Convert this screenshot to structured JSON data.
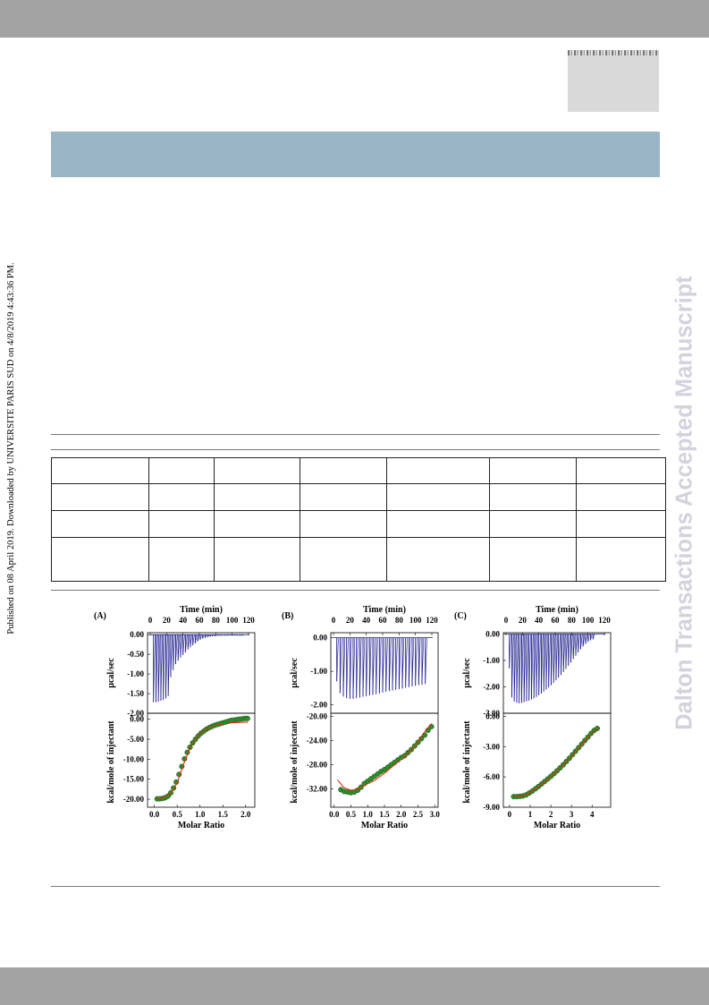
{
  "header": {
    "side_watermark": "Published on 08 April 2019. Downloaded by UNIVERSITE PARIS SUD on 4/8/2019 4:43:36 PM."
  },
  "journal": {
    "vertical_title": "Dalton Transactions Accepted Manuscript"
  },
  "table": {
    "rows": 4,
    "cols": 7,
    "cells": []
  },
  "figure": {
    "panels": [
      {
        "label": "(A)",
        "top_xlabel": "Time (min)",
        "top_xticks": [
          "0",
          "20",
          "40",
          "60",
          "80",
          "100",
          "120"
        ],
        "top_ylabel": "µcal/sec",
        "top_yticks": [
          "0.00",
          "-0.50",
          "-1.00",
          "-1.50",
          "-2.00"
        ],
        "bottom_ylabel": "kcal/mole of injectant",
        "bottom_yticks": [
          "0.00",
          "-5.00",
          "-10.00",
          "-15.00",
          "-20.00"
        ],
        "bottom_xlabel": "Molar Ratio",
        "bottom_xticks": [
          "0.0",
          "0.5",
          "1.0",
          "1.5",
          "2.0"
        ]
      },
      {
        "label": "(B)",
        "top_xlabel": "Time (min)",
        "top_xticks": [
          "0",
          "20",
          "40",
          "60",
          "80",
          "100",
          "120"
        ],
        "top_ylabel": "µcal/sec",
        "top_yticks": [
          "0.00",
          "-1.00",
          "-2.00"
        ],
        "bottom_ylabel": "kcal/mole of injectant",
        "bottom_yticks": [
          "-20.00",
          "-24.00",
          "-28.00",
          "-32.00"
        ],
        "bottom_xlabel": "Molar Ratio",
        "bottom_xticks": [
          "0.0",
          "0.5",
          "1.0",
          "1.5",
          "2.0",
          "2.5",
          "3.0"
        ]
      },
      {
        "label": "(C)",
        "top_xlabel": "Time (min)",
        "top_xticks": [
          "0",
          "20",
          "40",
          "60",
          "80",
          "100",
          "120"
        ],
        "top_ylabel": "µcal/sec",
        "top_yticks": [
          "0.00",
          "-1.00",
          "-2.00",
          "-3.00"
        ],
        "bottom_ylabel": "kcal/mole of injectant",
        "bottom_yticks": [
          "0.00",
          "-3.00",
          "-6.00",
          "-9.00"
        ],
        "bottom_xlabel": "Molar Ratio",
        "bottom_xticks": [
          "0",
          "1",
          "2",
          "3",
          "4"
        ]
      }
    ]
  },
  "colors": {
    "raw_trace": "#1f1f8c",
    "fit_line": "#e03010",
    "points": "#2e8b2e",
    "banner": "#9ab5c5",
    "watermark": "#d3d3de"
  },
  "chart_data": [
    {
      "type": "line",
      "panel": "A-top",
      "xlabel": "Time (min)",
      "ylabel": "µcal/sec",
      "xlim": [
        0,
        120
      ],
      "ylim": [
        -2.0,
        0.05
      ],
      "x": [
        4,
        7,
        10,
        13,
        16,
        19,
        22,
        25,
        28,
        31,
        34,
        37,
        40,
        43,
        46,
        49,
        52,
        55,
        58,
        61,
        64,
        67,
        70,
        73,
        76,
        79,
        82,
        85,
        88,
        91,
        94,
        97,
        100,
        103,
        106,
        109,
        112
      ],
      "values": [
        -1.72,
        -1.72,
        -1.7,
        -1.68,
        -1.66,
        -1.62,
        -1.56,
        -1.08,
        -0.9,
        -0.75,
        -0.66,
        -0.58,
        -0.52,
        -0.45,
        -0.38,
        -0.32,
        -0.27,
        -0.22,
        -0.17,
        -0.13,
        -0.1,
        -0.08,
        -0.06,
        -0.05,
        -0.04,
        -0.035,
        -0.03,
        -0.025,
        -0.02,
        -0.02,
        -0.02,
        -0.02,
        -0.02,
        -0.02,
        -0.02,
        -0.02,
        -0.02
      ]
    },
    {
      "type": "scatter",
      "panel": "A-bottom",
      "xlabel": "Molar Ratio",
      "ylabel": "kcal/mole of injectant",
      "xlim": [
        -0.15,
        2.2
      ],
      "ylim": [
        -22,
        1.5
      ],
      "x": [
        0.06,
        0.12,
        0.18,
        0.24,
        0.3,
        0.36,
        0.42,
        0.48,
        0.54,
        0.6,
        0.66,
        0.72,
        0.78,
        0.84,
        0.9,
        0.96,
        1.02,
        1.08,
        1.14,
        1.2,
        1.26,
        1.32,
        1.38,
        1.44,
        1.5,
        1.56,
        1.62,
        1.68,
        1.74,
        1.8,
        1.86,
        1.92,
        1.98,
        2.04
      ],
      "values": [
        -19.9,
        -19.9,
        -19.8,
        -19.6,
        -19.2,
        -18.4,
        -17.2,
        -15.7,
        -13.8,
        -11.8,
        -9.9,
        -8.3,
        -7.0,
        -5.9,
        -5.0,
        -4.2,
        -3.5,
        -3.0,
        -2.5,
        -2.1,
        -1.8,
        -1.5,
        -1.3,
        -1.1,
        -0.9,
        -0.7,
        -0.5,
        -0.3,
        -0.2,
        -0.1,
        0.0,
        0.1,
        0.2,
        0.2
      ],
      "fit_x": [
        0.05,
        0.2,
        0.35,
        0.5,
        0.65,
        0.8,
        0.95,
        1.1,
        1.25,
        1.4,
        1.55,
        1.7,
        1.85,
        2.05
      ],
      "fit": [
        -19.8,
        -19.6,
        -18.6,
        -15.9,
        -10.9,
        -6.6,
        -4.1,
        -2.7,
        -1.9,
        -1.4,
        -1.1,
        -0.9,
        -0.8,
        -0.7
      ]
    },
    {
      "type": "line",
      "panel": "B-top",
      "xlabel": "Time (min)",
      "ylabel": "µcal/sec",
      "xlim": [
        0,
        120
      ],
      "ylim": [
        -2.25,
        0.15
      ],
      "x": [
        4,
        8,
        12,
        16,
        20,
        24,
        28,
        32,
        36,
        40,
        44,
        48,
        52,
        56,
        60,
        64,
        68,
        72,
        76,
        80,
        84,
        88,
        92,
        96,
        100,
        104,
        108,
        112
      ],
      "values": [
        -1.3,
        -1.65,
        -1.75,
        -1.8,
        -1.82,
        -1.82,
        -1.8,
        -1.78,
        -1.76,
        -1.74,
        -1.72,
        -1.7,
        -1.68,
        -1.66,
        -1.63,
        -1.61,
        -1.59,
        -1.57,
        -1.55,
        -1.53,
        -1.51,
        -1.49,
        -1.47,
        -1.45,
        -1.43,
        -1.41,
        -1.4,
        -1.38
      ]
    },
    {
      "type": "scatter",
      "panel": "B-bottom",
      "xlabel": "Molar Ratio",
      "ylabel": "kcal/mole of injectant",
      "xlim": [
        -0.1,
        3.1
      ],
      "ylim": [
        -35,
        -19.5
      ],
      "x": [
        0.2,
        0.3,
        0.4,
        0.5,
        0.6,
        0.7,
        0.8,
        0.9,
        1.0,
        1.1,
        1.2,
        1.3,
        1.4,
        1.5,
        1.6,
        1.7,
        1.8,
        1.9,
        2.0,
        2.1,
        2.2,
        2.3,
        2.4,
        2.5,
        2.6,
        2.7,
        2.8,
        2.9
      ],
      "values": [
        -32.1,
        -32.4,
        -32.5,
        -32.6,
        -32.5,
        -32.2,
        -31.7,
        -31.1,
        -30.7,
        -30.3,
        -29.9,
        -29.5,
        -29.1,
        -28.8,
        -28.4,
        -28.0,
        -27.6,
        -27.2,
        -26.8,
        -26.5,
        -26.0,
        -25.5,
        -24.9,
        -24.3,
        -23.7,
        -23.1,
        -22.3,
        -21.7
      ],
      "fit_x": [
        0.1,
        0.3,
        0.5,
        0.7,
        0.9,
        1.2,
        1.5,
        1.8,
        2.1,
        2.4,
        2.7,
        2.9
      ],
      "fit": [
        -30.5,
        -31.8,
        -32.2,
        -32.0,
        -31.4,
        -30.6,
        -29.4,
        -28.0,
        -26.6,
        -24.9,
        -22.6,
        -21.2
      ]
    },
    {
      "type": "line",
      "panel": "C-top",
      "xlabel": "Time (min)",
      "ylabel": "µcal/sec",
      "xlim": [
        0,
        120
      ],
      "ylim": [
        -3.0,
        0.05
      ],
      "x": [
        4,
        7,
        10,
        13,
        16,
        19,
        22,
        25,
        28,
        31,
        34,
        37,
        40,
        43,
        46,
        49,
        52,
        55,
        58,
        61,
        64,
        67,
        70,
        73,
        76,
        79,
        82,
        85,
        88,
        91,
        94,
        97,
        100,
        103,
        106
      ],
      "values": [
        -1.3,
        -2.4,
        -2.55,
        -2.6,
        -2.62,
        -2.6,
        -2.58,
        -2.55,
        -2.52,
        -2.48,
        -2.44,
        -2.38,
        -2.32,
        -2.25,
        -2.18,
        -2.1,
        -2.02,
        -1.94,
        -1.85,
        -1.75,
        -1.65,
        -1.55,
        -1.44,
        -1.32,
        -1.2,
        -1.08,
        -0.95,
        -0.82,
        -0.7,
        -0.58,
        -0.47,
        -0.38,
        -0.3,
        -0.24,
        -0.2
      ]
    },
    {
      "type": "scatter",
      "panel": "C-bottom",
      "xlabel": "Molar Ratio",
      "ylabel": "kcal/mole of injectant",
      "xlim": [
        -0.3,
        4.9
      ],
      "ylim": [
        -9.0,
        0.3
      ],
      "x": [
        0.2,
        0.35,
        0.5,
        0.65,
        0.8,
        0.95,
        1.1,
        1.25,
        1.4,
        1.55,
        1.7,
        1.85,
        2.0,
        2.15,
        2.3,
        2.45,
        2.6,
        2.75,
        2.9,
        3.05,
        3.2,
        3.35,
        3.5,
        3.65,
        3.8,
        3.95,
        4.1,
        4.25
      ],
      "values": [
        -7.95,
        -7.95,
        -7.92,
        -7.88,
        -7.78,
        -7.6,
        -7.4,
        -7.18,
        -6.95,
        -6.7,
        -6.45,
        -6.2,
        -5.95,
        -5.68,
        -5.4,
        -5.1,
        -4.8,
        -4.48,
        -4.15,
        -3.8,
        -3.45,
        -3.1,
        -2.75,
        -2.4,
        -2.05,
        -1.7,
        -1.4,
        -1.2
      ],
      "fit_x": [
        0.2,
        0.6,
        1.0,
        1.4,
        1.8,
        2.2,
        2.6,
        3.0,
        3.4,
        3.8,
        4.25
      ],
      "fit": [
        -7.95,
        -7.9,
        -7.55,
        -6.95,
        -6.3,
        -5.6,
        -4.8,
        -3.95,
        -3.0,
        -2.05,
        -1.2
      ]
    }
  ]
}
